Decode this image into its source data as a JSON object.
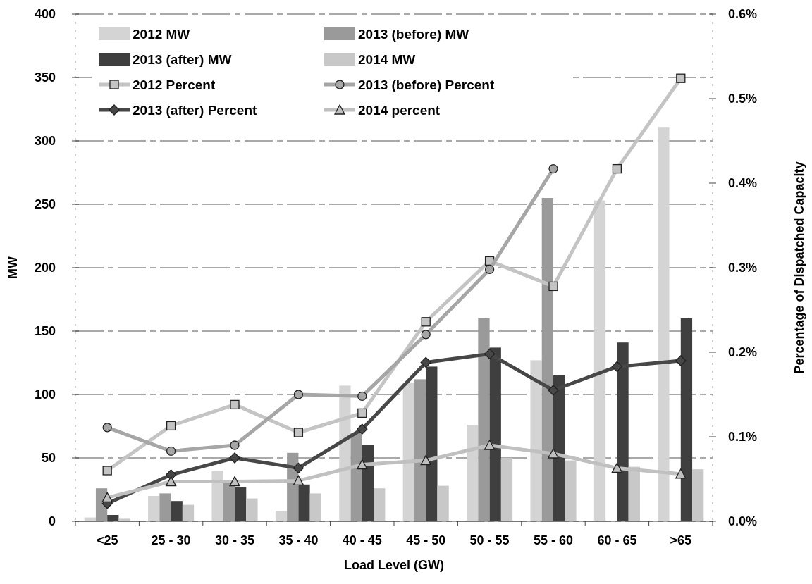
{
  "chart_data": {
    "type": "bar",
    "xlabel": "Load Level (GW)",
    "ylabel": "MW",
    "y2label": "Percentage of Dispatched Capacity",
    "categories": [
      "<25",
      "25 - 30",
      "30 - 35",
      "35 - 40",
      "40 - 45",
      "45 - 50",
      "50 - 55",
      "55 - 60",
      "60 - 65",
      ">65"
    ],
    "series": [
      {
        "name": "2012 MW",
        "color": "#d4d4d4",
        "values": [
          3,
          20,
          40,
          8,
          107,
          109,
          76,
          127,
          253,
          311
        ]
      },
      {
        "name": "2013 (before) MW",
        "color": "#9a9a9a",
        "values": [
          26,
          22,
          32,
          54,
          70,
          112,
          160,
          255,
          null,
          null
        ]
      },
      {
        "name": "2013 (after) MW",
        "color": "#3f3f3f",
        "values": [
          5,
          16,
          27,
          29,
          60,
          122,
          137,
          115,
          141,
          160
        ]
      },
      {
        "name": "2014 MW",
        "color": "#c8c8c8",
        "values": [
          2,
          13,
          18,
          22,
          26,
          28,
          50,
          48,
          43,
          41
        ]
      },
      {
        "name": "2012 Percent",
        "type": "line",
        "axis": "y2",
        "marker": "square",
        "color": "#c4c4c4",
        "values": [
          0.06,
          0.113,
          0.138,
          0.105,
          0.128,
          0.236,
          0.308,
          0.278,
          0.417,
          0.524
        ]
      },
      {
        "name": "2013 (before) Percent",
        "type": "line",
        "axis": "y2",
        "marker": "circle",
        "color": "#a6a6a6",
        "values": [
          0.111,
          0.083,
          0.09,
          0.15,
          0.148,
          0.221,
          0.298,
          0.417,
          null,
          null
        ]
      },
      {
        "name": "2013 (after) Percent",
        "type": "line",
        "axis": "y2",
        "marker": "diamond",
        "color": "#474747",
        "values": [
          0.021,
          0.055,
          0.075,
          0.063,
          0.109,
          0.188,
          0.198,
          0.155,
          0.183,
          0.19
        ]
      },
      {
        "name": "2014 percent",
        "type": "line",
        "axis": "y2",
        "marker": "triangle",
        "color": "#c0c0c0",
        "values": [
          0.028,
          0.047,
          0.047,
          0.048,
          0.067,
          0.072,
          0.09,
          0.08,
          0.063,
          0.056
        ]
      }
    ],
    "ylim": [
      0,
      400
    ],
    "yticks": [
      0,
      50,
      100,
      150,
      200,
      250,
      300,
      350,
      400
    ],
    "y2lim": [
      0,
      0.6
    ],
    "y2ticks": [
      {
        "value": 0,
        "label": "0.0%"
      },
      {
        "value": 0.1,
        "label": "0.1%"
      },
      {
        "value": 0.2,
        "label": "0.2%"
      },
      {
        "value": 0.3,
        "label": "0.3%"
      },
      {
        "value": 0.4,
        "label": "0.4%"
      },
      {
        "value": 0.5,
        "label": "0.5%"
      },
      {
        "value": 0.6,
        "label": "0.6%"
      }
    ],
    "grid": "y",
    "legend": "top"
  }
}
